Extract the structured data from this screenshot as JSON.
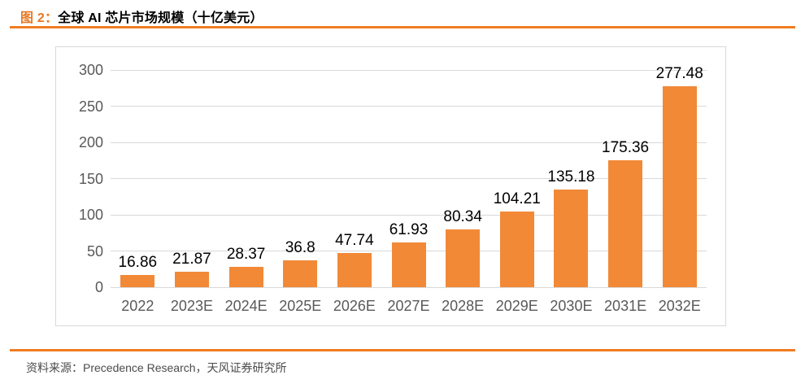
{
  "figure": {
    "label": "图 2：",
    "title": "全球 AI 芯片市场规模（十亿美元）",
    "source": "资料来源：Precedence Research，天风证券研究所"
  },
  "colors": {
    "accent_rule": "#F07D22",
    "figure_label": "#E87722",
    "bar": "#F28937",
    "gridline": "#D9D9D9",
    "frame_border": "#D9D9D9",
    "axis_text": "#595959",
    "data_label_text": "#000000",
    "source_text": "#4B4B4B"
  },
  "chart_data": {
    "type": "bar",
    "title": "全球 AI 芯片市场规模（十亿美元）",
    "categories": [
      "2022",
      "2023E",
      "2024E",
      "2025E",
      "2026E",
      "2027E",
      "2028E",
      "2029E",
      "2030E",
      "2031E",
      "2032E"
    ],
    "values": [
      16.86,
      21.87,
      28.37,
      36.8,
      47.74,
      61.93,
      80.34,
      104.21,
      135.18,
      175.36,
      277.48
    ],
    "data_labels": [
      "16.86",
      "21.87",
      "28.37",
      "36.8",
      "47.74",
      "61.93",
      "80.34",
      "104.21",
      "135.18",
      "175.36",
      "277.48"
    ],
    "xlabel": "",
    "ylabel": "",
    "y_ticks": [
      0,
      50,
      100,
      150,
      200,
      250,
      300
    ],
    "ylim": [
      0,
      300
    ],
    "grid": true,
    "legend": "none",
    "data_labels_shown": true
  }
}
